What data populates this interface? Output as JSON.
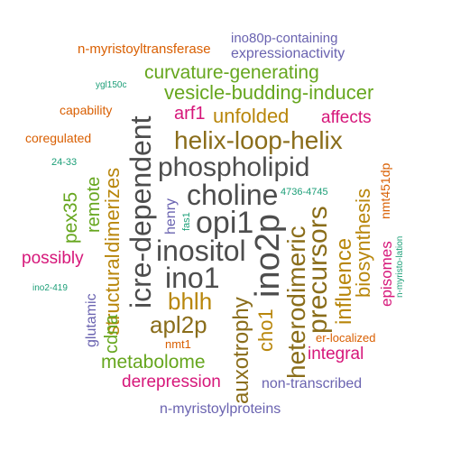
{
  "colors": {
    "gray": "#4d4d4d",
    "orange": "#d95f02",
    "purple": "#6a63b0",
    "green": "#66a61e",
    "gold": "#b8860b",
    "magenta": "#d6177a",
    "teal": "#1b9e77",
    "olive": "#8a6d1a"
  },
  "words": [
    {
      "text": "phospholipid"
    },
    {
      "text": "choline"
    },
    {
      "text": "opi1"
    },
    {
      "text": "inositol"
    },
    {
      "text": "ino1"
    },
    {
      "text": "helix-loop-helix"
    },
    {
      "text": "ino2p"
    },
    {
      "text": "icre-dependent"
    },
    {
      "text": "precursors"
    },
    {
      "text": "heterodimeric"
    },
    {
      "text": "bhlh"
    },
    {
      "text": "apl2p"
    },
    {
      "text": "vesicle-budding-inducer"
    },
    {
      "text": "curvature-generating"
    },
    {
      "text": "unfolded"
    },
    {
      "text": "affects"
    },
    {
      "text": "arf1"
    },
    {
      "text": "n-myristoyltransferase"
    },
    {
      "text": "ino80p-containing"
    },
    {
      "text": "expressionactivity"
    },
    {
      "text": "ygl150c"
    },
    {
      "text": "capability"
    },
    {
      "text": "coregulated"
    },
    {
      "text": "24-33"
    },
    {
      "text": "dimerizes"
    },
    {
      "text": "structural"
    },
    {
      "text": "remote"
    },
    {
      "text": "pex35"
    },
    {
      "text": "possibly"
    },
    {
      "text": "ino2-419"
    },
    {
      "text": "glutamic"
    },
    {
      "text": "cdna"
    },
    {
      "text": "henry"
    },
    {
      "text": "fas1"
    },
    {
      "text": "4736-4745"
    },
    {
      "text": "biosynthesis"
    },
    {
      "text": "nmt451dp"
    },
    {
      "text": "influence"
    },
    {
      "text": "episomes"
    },
    {
      "text": "n-myristo-lation"
    },
    {
      "text": "auxotrophy"
    },
    {
      "text": "cho1"
    },
    {
      "text": "nmt1"
    },
    {
      "text": "er-localized"
    },
    {
      "text": "integral"
    },
    {
      "text": "metabolome"
    },
    {
      "text": "derepression"
    },
    {
      "text": "non-transcribed"
    },
    {
      "text": "n-myristoylproteins"
    }
  ]
}
